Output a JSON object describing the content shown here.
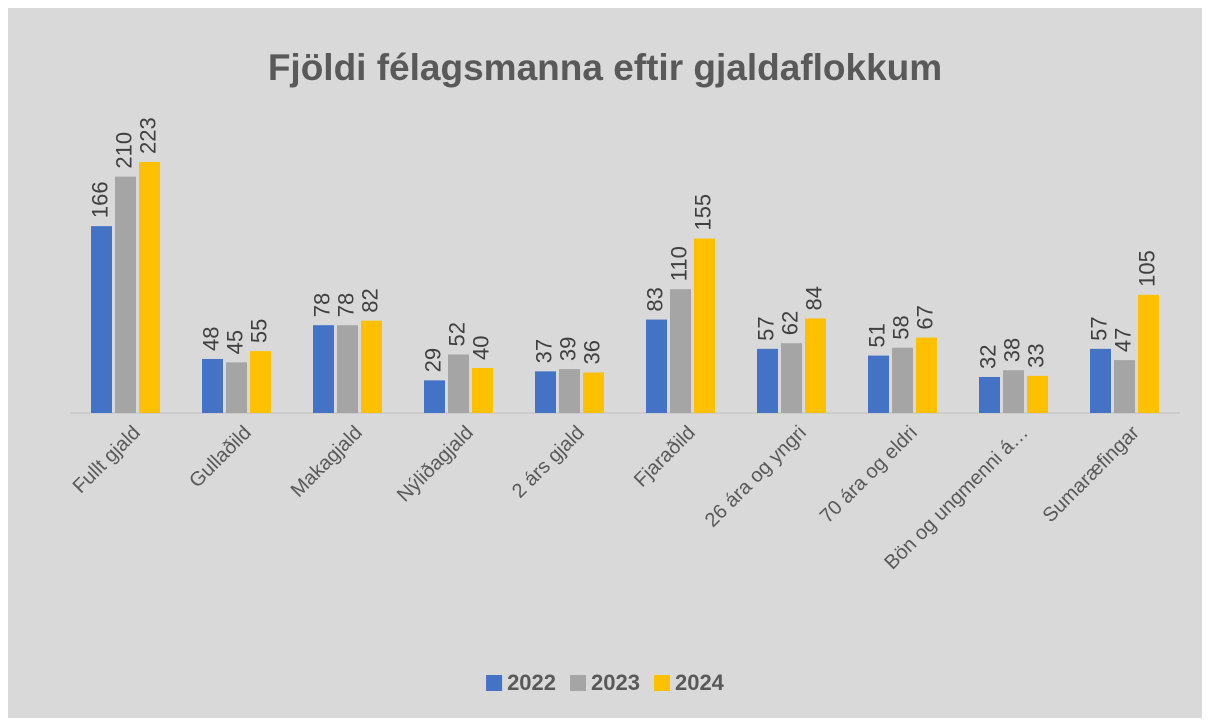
{
  "chart_data": {
    "type": "bar",
    "title": "Fjöldi félagsmanna eftir gjaldaflokkum",
    "categories": [
      "Fullt gjald",
      "Gullaðild",
      "Makagjald",
      "Nýliðagjald",
      "2 árs gjald",
      "Fjaraðild",
      "26 ára og yngri",
      "70 ára og eldri",
      "Bön og ungmenni á…",
      "Sumaræfingar"
    ],
    "series": [
      {
        "name": "2022",
        "color": "#4472c4",
        "values": [
          166,
          48,
          78,
          29,
          37,
          83,
          57,
          51,
          32,
          57
        ]
      },
      {
        "name": "2023",
        "color": "#a5a5a5",
        "values": [
          210,
          45,
          78,
          52,
          39,
          110,
          62,
          58,
          38,
          47
        ]
      },
      {
        "name": "2024",
        "color": "#ffc000",
        "values": [
          223,
          55,
          82,
          40,
          36,
          155,
          84,
          67,
          33,
          105
        ]
      }
    ],
    "legend": "bottom"
  }
}
